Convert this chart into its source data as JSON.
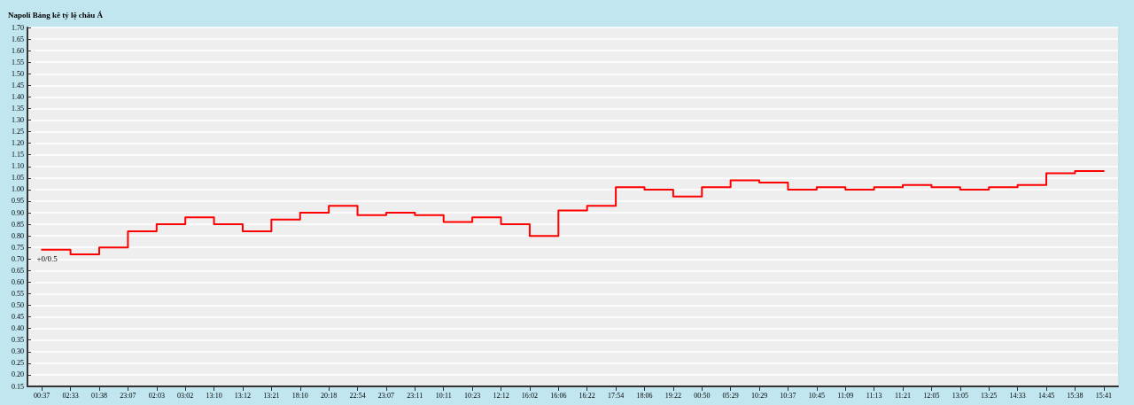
{
  "chart_data": {
    "type": "step",
    "title": "Napoli Bảng kê tỷ lệ châu Á",
    "categories": [
      "00:37",
      "02:33",
      "01:38",
      "23:07",
      "02:03",
      "03:02",
      "13:10",
      "13:12",
      "13:21",
      "18:10",
      "20:18",
      "22:54",
      "23:07",
      "23:11",
      "10:11",
      "10:23",
      "12:12",
      "16:02",
      "16:06",
      "16:22",
      "17:54",
      "18:06",
      "19:22",
      "00:50",
      "05:29",
      "10:29",
      "10:37",
      "10:45",
      "11:09",
      "11:13",
      "11:21",
      "12:05",
      "13:05",
      "13:25",
      "14:33",
      "14:45",
      "15:38",
      "15:41"
    ],
    "series": [
      {
        "color": "#ff0000",
        "values": [
          0.74,
          0.72,
          0.75,
          0.82,
          0.85,
          0.88,
          0.85,
          0.82,
          0.87,
          0.9,
          0.93,
          0.89,
          0.9,
          0.89,
          0.86,
          0.88,
          0.85,
          0.8,
          0.91,
          0.93,
          1.01,
          1.0,
          0.97,
          1.01,
          1.04,
          1.03,
          1.0,
          1.01,
          1.0,
          1.01,
          1.02,
          1.01,
          1.0,
          1.01,
          1.02,
          1.07,
          1.08,
          1.08
        ]
      }
    ],
    "ylim": [
      0.15,
      1.7
    ],
    "yticks": [
      {
        "value": 0.15,
        "label": "0.15"
      },
      {
        "value": 0.2,
        "label": "0.20"
      },
      {
        "value": 0.25,
        "label": "0.25"
      },
      {
        "value": 0.3,
        "label": "0.30"
      },
      {
        "value": 0.35,
        "label": "0.35"
      },
      {
        "value": 0.4,
        "label": "0.40"
      },
      {
        "value": 0.45,
        "label": "0.45"
      },
      {
        "value": 0.5,
        "label": "0.50"
      },
      {
        "value": 0.55,
        "label": "0.55"
      },
      {
        "value": 0.6,
        "label": "0.60"
      },
      {
        "value": 0.65,
        "label": "0.65"
      },
      {
        "value": 0.7,
        "label": "0.70"
      },
      {
        "value": 0.75,
        "label": "0.75"
      },
      {
        "value": 0.8,
        "label": "0.80"
      },
      {
        "value": 0.85,
        "label": "0.85"
      },
      {
        "value": 0.9,
        "label": "0.90"
      },
      {
        "value": 0.95,
        "label": "0.95"
      },
      {
        "value": 1.0,
        "label": "1.00"
      },
      {
        "value": 1.05,
        "label": "1.05"
      },
      {
        "value": 1.1,
        "label": "1.10"
      },
      {
        "value": 1.15,
        "label": "1.15"
      },
      {
        "value": 1.2,
        "label": "1.20"
      },
      {
        "value": 1.25,
        "label": "1.25"
      },
      {
        "value": 1.3,
        "label": "1.30"
      },
      {
        "value": 1.35,
        "label": "1.35"
      },
      {
        "value": 1.4,
        "label": "1.40"
      },
      {
        "value": 1.45,
        "label": "1.45"
      },
      {
        "value": 1.5,
        "label": "1.50"
      },
      {
        "value": 1.55,
        "label": "1.55"
      },
      {
        "value": 1.6,
        "label": "1.60"
      },
      {
        "value": 1.65,
        "label": "1.65"
      },
      {
        "value": 1.7,
        "label": "1.70"
      }
    ],
    "annotations": [
      {
        "text": "+0/0.5",
        "x": "00:37",
        "y": 0.74
      }
    ],
    "grid": "y",
    "marker": "none",
    "line_style": "solid"
  }
}
